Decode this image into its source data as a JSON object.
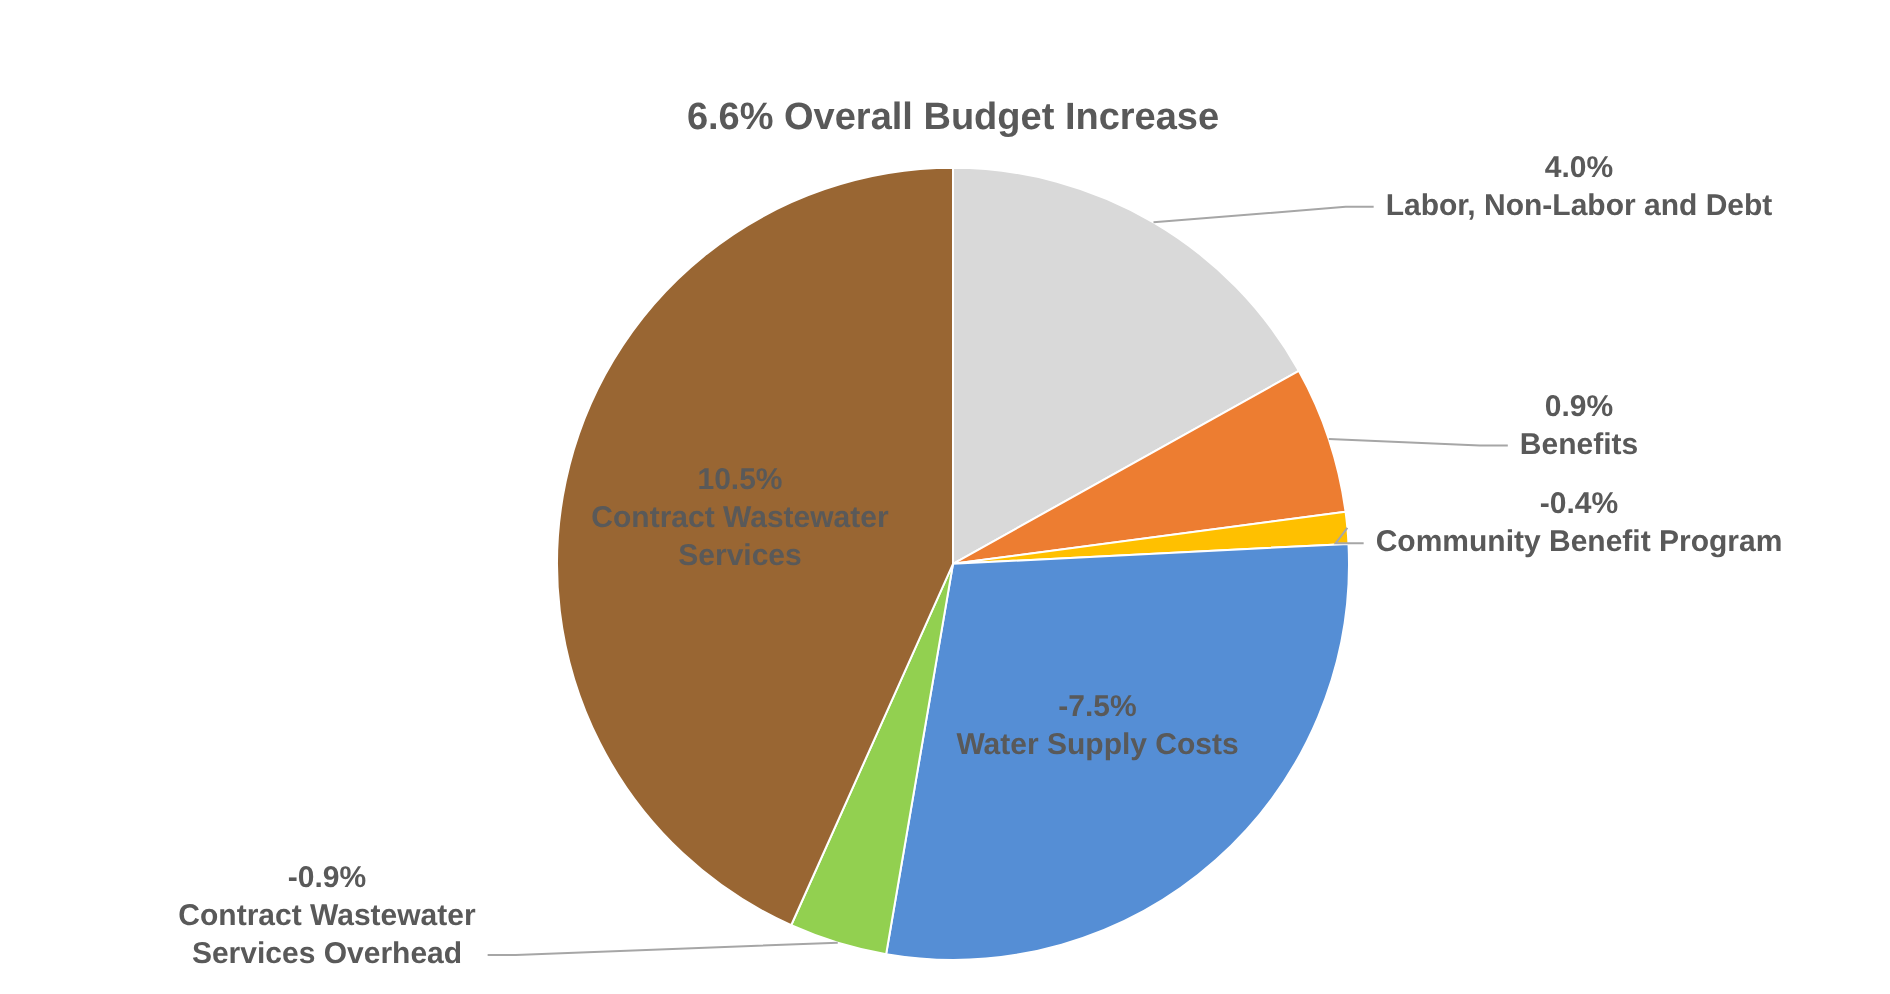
{
  "chart_data": {
    "type": "pie",
    "title": "6.6% Overall Budget Increase",
    "categories": [
      "Labor, Non-Labor and Debt",
      "Benefits",
      "Community Benefit Program",
      "Water Supply Costs",
      "Contract Wastewater Services Overhead",
      "Contract Wastewater Services"
    ],
    "values": [
      16.9,
      6.0,
      1.3,
      28.5,
      4.0,
      43.3
    ],
    "colors": [
      "#d9d9d9",
      "#ed7d31",
      "#ffc000",
      "#558ed5",
      "#92d050",
      "#996633"
    ],
    "annotations": [
      "4.0%",
      "0.9%",
      "-0.4%",
      "-7.5%",
      "-0.9%",
      "10.5%"
    ],
    "legend": false
  }
}
